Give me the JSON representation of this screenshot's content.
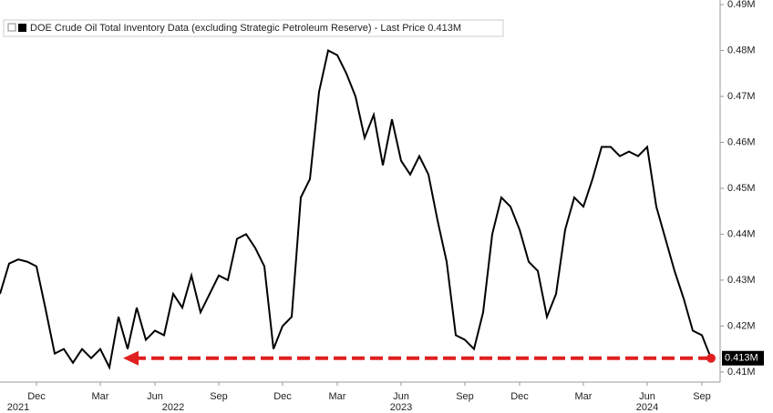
{
  "chart_data": {
    "type": "line",
    "legend": "DOE Crude Oil Total Inventory Data (excluding Strategic Petroleum Reserve) - Last Price 0.413M",
    "categories": [
      null,
      null,
      null,
      null,
      "Dec",
      null,
      null,
      null,
      null,
      null,
      null,
      "Mar",
      null,
      null,
      null,
      null,
      null,
      "Jun",
      null,
      null,
      null,
      null,
      null,
      null,
      "Sep",
      null,
      null,
      null,
      null,
      null,
      null,
      "Dec",
      null,
      null,
      null,
      null,
      null,
      "Mar",
      null,
      null,
      null,
      null,
      null,
      null,
      "Jun",
      null,
      null,
      null,
      null,
      null,
      null,
      "Sep",
      null,
      null,
      null,
      null,
      null,
      "Dec",
      null,
      null,
      null,
      null,
      null,
      null,
      "Mar",
      null,
      null,
      null,
      null,
      null,
      null,
      "Jun",
      null,
      null,
      null,
      null,
      null,
      "Sep",
      null
    ],
    "year_labels": [
      {
        "label": "2021",
        "at": 2
      },
      {
        "label": "2022",
        "at": 19
      },
      {
        "label": "2023",
        "at": 44
      },
      {
        "label": "2024",
        "at": 71
      }
    ],
    "series": [
      {
        "name": "DOE Crude Oil Total Inventory Data (excluding Strategic Petroleum Reserve)",
        "color": "#000000",
        "values": [
          0.427,
          0.4336,
          0.4345,
          0.434,
          0.433,
          0.4237,
          0.414,
          0.415,
          0.412,
          0.415,
          0.413,
          0.415,
          0.411,
          0.422,
          0.415,
          0.424,
          0.417,
          0.419,
          0.418,
          0.427,
          0.424,
          0.431,
          0.423,
          0.427,
          0.431,
          0.43,
          0.439,
          0.44,
          0.437,
          0.433,
          0.415,
          0.42,
          0.422,
          0.448,
          0.452,
          0.471,
          0.48,
          0.479,
          0.475,
          0.47,
          0.461,
          0.466,
          0.455,
          0.465,
          0.456,
          0.453,
          0.457,
          0.453,
          0.443,
          0.434,
          0.418,
          0.417,
          0.415,
          0.423,
          0.44,
          0.448,
          0.446,
          0.441,
          0.434,
          0.432,
          0.422,
          0.427,
          0.441,
          0.448,
          0.446,
          0.452,
          0.459,
          0.459,
          0.457,
          0.458,
          0.457,
          0.459,
          0.446,
          0.439,
          0.432,
          0.426,
          0.419,
          0.418,
          0.413
        ]
      }
    ],
    "last_price": {
      "value": 0.413,
      "label": "0.413M",
      "color": "#e02020"
    },
    "ylim": [
      0.4078,
      0.491
    ],
    "yticks": [
      {
        "value": 0.41,
        "label": "0.41M"
      },
      {
        "value": 0.42,
        "label": "0.42M"
      },
      {
        "value": 0.43,
        "label": "0.43M"
      },
      {
        "value": 0.44,
        "label": "0.44M"
      },
      {
        "value": 0.45,
        "label": "0.45M"
      },
      {
        "value": 0.46,
        "label": "0.46M"
      },
      {
        "value": 0.47,
        "label": "0.47M"
      },
      {
        "value": 0.48,
        "label": "0.48M"
      },
      {
        "value": 0.49,
        "label": "0.49M"
      }
    ]
  }
}
